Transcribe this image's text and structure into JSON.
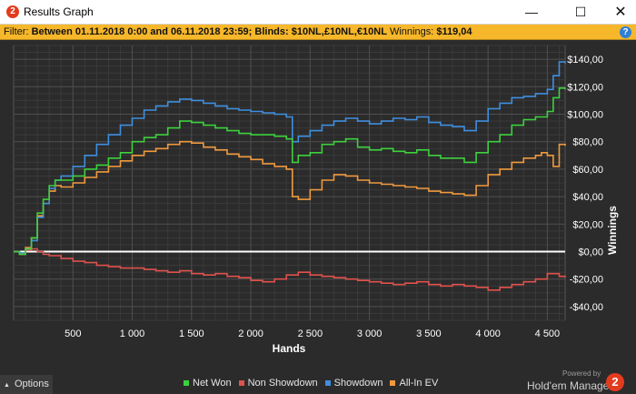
{
  "window": {
    "icon_glyph": "2",
    "title": "Results Graph",
    "minimize_glyph": "—",
    "maximize_glyph": "☐",
    "close_glyph": "✕"
  },
  "filter": {
    "prefix": "Filter:",
    "date_range": "Between 01.11.2018 0:00 and 06.11.2018 23:59;",
    "blinds_label": "Blinds:",
    "blinds_value": "$10NL,£10NL,€10NL",
    "winnings_label": "Winnings:",
    "winnings_value": "$119,04",
    "help_glyph": "?"
  },
  "chart_data": {
    "type": "line",
    "xlabel": "Hands",
    "ylabel": "Winnings",
    "xlim": [
      0,
      4650
    ],
    "ylim": [
      -50,
      150
    ],
    "x_ticks": [
      500,
      1000,
      1500,
      2000,
      2500,
      3000,
      3500,
      4000,
      4500
    ],
    "x_tick_labels": [
      "500",
      "1 000",
      "1 500",
      "2 000",
      "2 500",
      "3 000",
      "3 500",
      "4 000",
      "4 500"
    ],
    "y_ticks": [
      -40,
      -20,
      0,
      20,
      40,
      60,
      80,
      100,
      120,
      140
    ],
    "y_tick_labels": [
      "-$40,00",
      "-$20,00",
      "$0,00",
      "$20,00",
      "$40,00",
      "$60,00",
      "$80,00",
      "$100,00",
      "$120,00",
      "$140,00"
    ],
    "grid": true,
    "legend_position": "bottom",
    "series": [
      {
        "name": "Net Won",
        "color": "#3dd13d",
        "x": [
          0,
          50,
          100,
          150,
          200,
          250,
          300,
          350,
          400,
          500,
          600,
          700,
          800,
          900,
          1000,
          1100,
          1200,
          1300,
          1400,
          1500,
          1600,
          1700,
          1800,
          1900,
          2000,
          2100,
          2200,
          2300,
          2350,
          2400,
          2500,
          2600,
          2700,
          2800,
          2900,
          3000,
          3100,
          3200,
          3300,
          3400,
          3500,
          3600,
          3700,
          3800,
          3900,
          4000,
          4100,
          4200,
          4300,
          4400,
          4450,
          4500,
          4550,
          4600,
          4650
        ],
        "y": [
          0,
          -2,
          2,
          10,
          28,
          38,
          48,
          52,
          52,
          55,
          60,
          63,
          68,
          72,
          80,
          83,
          85,
          90,
          95,
          94,
          92,
          90,
          88,
          86,
          85,
          85,
          84,
          82,
          65,
          70,
          72,
          78,
          80,
          82,
          76,
          74,
          75,
          73,
          72,
          74,
          70,
          68,
          68,
          65,
          72,
          80,
          85,
          92,
          96,
          98,
          98,
          102,
          112,
          119,
          118
        ]
      },
      {
        "name": "Non Showdown",
        "color": "#e0524c",
        "x": [
          0,
          50,
          100,
          150,
          200,
          250,
          300,
          400,
          500,
          600,
          700,
          800,
          900,
          1000,
          1100,
          1200,
          1300,
          1400,
          1500,
          1600,
          1700,
          1800,
          1900,
          2000,
          2100,
          2200,
          2300,
          2400,
          2500,
          2600,
          2700,
          2800,
          2900,
          3000,
          3100,
          3200,
          3300,
          3400,
          3500,
          3600,
          3700,
          3800,
          3900,
          4000,
          4100,
          4200,
          4300,
          4400,
          4500,
          4600,
          4650
        ],
        "y": [
          0,
          -1,
          1,
          2,
          0,
          -2,
          -3,
          -5,
          -7,
          -8,
          -10,
          -11,
          -12,
          -12,
          -13,
          -14,
          -15,
          -14,
          -16,
          -17,
          -16,
          -18,
          -19,
          -21,
          -22,
          -20,
          -17,
          -15,
          -17,
          -18,
          -19,
          -20,
          -21,
          -22,
          -23,
          -24,
          -23,
          -22,
          -24,
          -25,
          -24,
          -25,
          -26,
          -28,
          -26,
          -24,
          -22,
          -20,
          -16,
          -18,
          -19
        ]
      },
      {
        "name": "Showdown",
        "color": "#3f8fe0",
        "x": [
          0,
          50,
          100,
          150,
          200,
          250,
          300,
          350,
          400,
          500,
          600,
          700,
          800,
          900,
          1000,
          1100,
          1200,
          1300,
          1400,
          1500,
          1600,
          1700,
          1800,
          1900,
          2000,
          2100,
          2200,
          2300,
          2350,
          2400,
          2500,
          2600,
          2700,
          2800,
          2900,
          3000,
          3100,
          3200,
          3300,
          3400,
          3500,
          3600,
          3700,
          3800,
          3900,
          4000,
          4100,
          4200,
          4300,
          4400,
          4450,
          4500,
          4550,
          4600,
          4650
        ],
        "y": [
          0,
          -1,
          2,
          8,
          25,
          35,
          46,
          52,
          55,
          62,
          70,
          78,
          85,
          92,
          97,
          103,
          106,
          109,
          111,
          110,
          108,
          106,
          104,
          103,
          102,
          101,
          100,
          98,
          80,
          84,
          88,
          92,
          95,
          97,
          95,
          93,
          95,
          97,
          96,
          98,
          94,
          92,
          91,
          88,
          95,
          104,
          108,
          112,
          113,
          115,
          115,
          118,
          128,
          138,
          137
        ]
      },
      {
        "name": "All-In EV",
        "color": "#f09a3e",
        "x": [
          0,
          50,
          100,
          150,
          200,
          250,
          300,
          350,
          400,
          500,
          600,
          700,
          800,
          900,
          1000,
          1100,
          1200,
          1300,
          1400,
          1500,
          1600,
          1700,
          1800,
          1900,
          2000,
          2100,
          2200,
          2300,
          2350,
          2400,
          2500,
          2600,
          2700,
          2800,
          2900,
          3000,
          3100,
          3200,
          3300,
          3400,
          3500,
          3600,
          3700,
          3800,
          3900,
          4000,
          4100,
          4200,
          4300,
          4400,
          4450,
          4500,
          4550,
          4600,
          4650
        ],
        "y": [
          0,
          -2,
          3,
          10,
          26,
          35,
          44,
          48,
          47,
          50,
          54,
          58,
          62,
          66,
          70,
          73,
          75,
          78,
          80,
          79,
          76,
          74,
          71,
          69,
          67,
          64,
          62,
          60,
          40,
          38,
          45,
          52,
          56,
          55,
          52,
          50,
          49,
          48,
          47,
          46,
          44,
          43,
          42,
          41,
          48,
          56,
          60,
          65,
          68,
          70,
          72,
          70,
          62,
          78,
          77
        ]
      }
    ]
  },
  "bottom": {
    "options_label": "Options",
    "options_glyph": "▲",
    "powered_by": "Powered by",
    "brand_name": "Hold'em Manager",
    "brand_logo": "2"
  }
}
